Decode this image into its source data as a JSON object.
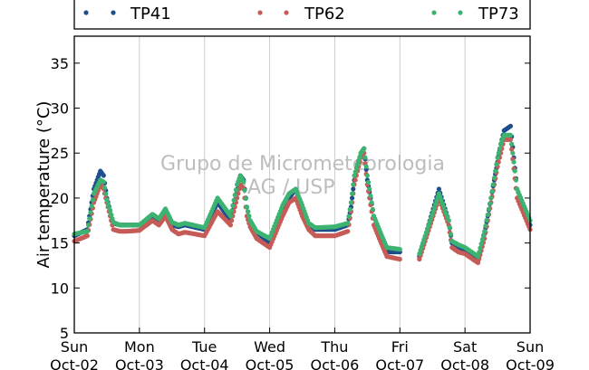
{
  "chart_data": {
    "type": "scatter",
    "ylabel": "Air temperature (°C)",
    "ylim": [
      5,
      38
    ],
    "yticks": [
      5,
      10,
      15,
      20,
      25,
      30,
      35
    ],
    "xlim_days": [
      0,
      7
    ],
    "xticks": [
      {
        "day": 0,
        "weekday": "Sun",
        "date": "Oct-02"
      },
      {
        "day": 1,
        "weekday": "Mon",
        "date": "Oct-03"
      },
      {
        "day": 2,
        "weekday": "Tue",
        "date": "Oct-04"
      },
      {
        "day": 3,
        "weekday": "Wed",
        "date": "Oct-05"
      },
      {
        "day": 4,
        "weekday": "Thu",
        "date": "Oct-06"
      },
      {
        "day": 5,
        "weekday": "Fri",
        "date": "Oct-07"
      },
      {
        "day": 6,
        "weekday": "Sat",
        "date": "Oct-08"
      },
      {
        "day": 7,
        "weekday": "Sun",
        "date": "Oct-09"
      }
    ],
    "grid": "vertical",
    "legend": "top",
    "watermark": [
      "Grupo de Micrometeorologia",
      "IAG / USP"
    ],
    "x": [
      0.0,
      0.2,
      0.3,
      0.4,
      0.45,
      0.5,
      0.6,
      0.7,
      0.8,
      1.0,
      1.2,
      1.3,
      1.4,
      1.5,
      1.6,
      1.7,
      2.0,
      2.2,
      2.4,
      2.5,
      2.55,
      2.6,
      2.65,
      2.7,
      2.8,
      3.0,
      3.2,
      3.3,
      3.4,
      3.5,
      3.6,
      3.7,
      4.0,
      4.2,
      4.25,
      4.3,
      4.4,
      4.45,
      4.5,
      4.6,
      4.7,
      4.8,
      5.0,
      5.2,
      5.25,
      5.3,
      5.6,
      5.75,
      5.8,
      5.9,
      6.0,
      6.2,
      6.3,
      6.4,
      6.5,
      6.55,
      6.6,
      6.7,
      6.8,
      7.0
    ],
    "series": [
      {
        "name": "TP41",
        "color": "#1f4e8c",
        "values": [
          15.8,
          16.5,
          21.0,
          23.0,
          22.5,
          20.0,
          17.2,
          17.0,
          17.0,
          17.0,
          18.0,
          17.5,
          18.5,
          17.0,
          16.8,
          17.0,
          16.5,
          19.5,
          17.5,
          21.0,
          22.5,
          22.0,
          19.0,
          17.5,
          16.2,
          15.0,
          19.0,
          20.0,
          21.0,
          19.0,
          17.0,
          16.5,
          16.5,
          17.0,
          19.0,
          22.0,
          25.0,
          25.5,
          22.0,
          18.0,
          16.0,
          14.0,
          14.0,
          null,
          null,
          13.5,
          21.0,
          17.5,
          15.0,
          14.5,
          14.2,
          13.0,
          16.0,
          20.0,
          24.0,
          26.0,
          27.5,
          28.0,
          21.0,
          17.0
        ]
      },
      {
        "name": "TP62",
        "color": "#c65b57",
        "values": [
          15.2,
          15.8,
          19.5,
          21.5,
          21.0,
          19.5,
          16.5,
          16.3,
          16.3,
          16.4,
          17.5,
          17.0,
          18.0,
          16.5,
          16.0,
          16.2,
          15.8,
          18.5,
          17.0,
          20.0,
          21.5,
          21.0,
          18.0,
          16.8,
          15.5,
          14.5,
          18.0,
          19.5,
          20.0,
          18.0,
          16.5,
          15.8,
          15.8,
          16.3,
          18.5,
          21.5,
          24.5,
          25.0,
          21.5,
          17.0,
          15.2,
          13.5,
          13.2,
          null,
          null,
          13.2,
          20.0,
          17.0,
          14.5,
          14.0,
          13.8,
          12.8,
          15.5,
          19.5,
          23.5,
          25.0,
          26.5,
          26.5,
          20.0,
          16.5
        ]
      },
      {
        "name": "TP73",
        "color": "#3cb371",
        "values": [
          16.0,
          16.3,
          20.5,
          22.0,
          21.8,
          19.8,
          17.3,
          17.0,
          17.0,
          17.0,
          18.2,
          17.7,
          18.8,
          17.3,
          17.0,
          17.2,
          16.7,
          20.0,
          18.0,
          21.5,
          22.5,
          21.8,
          19.0,
          17.5,
          16.3,
          15.5,
          19.2,
          20.5,
          21.0,
          19.2,
          17.2,
          16.7,
          16.8,
          17.2,
          19.5,
          22.5,
          25.0,
          25.5,
          22.5,
          18.0,
          16.2,
          14.5,
          14.3,
          null,
          null,
          13.8,
          20.5,
          17.5,
          15.2,
          14.8,
          14.5,
          13.5,
          16.3,
          20.0,
          24.5,
          26.0,
          27.0,
          27.0,
          21.0,
          17.5
        ]
      }
    ]
  }
}
